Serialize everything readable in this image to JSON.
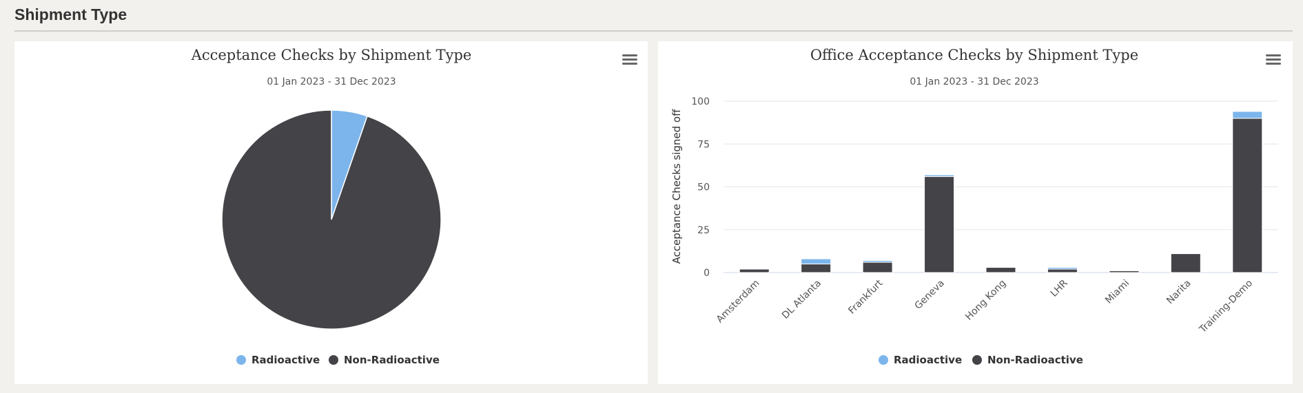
{
  "section": {
    "title": "Shipment Type"
  },
  "colors": {
    "radioactive": "#7cb5ec",
    "non_radioactive": "#434348"
  },
  "icons": {
    "menu": "hamburger-menu-icon"
  },
  "chart_data": [
    {
      "type": "pie",
      "title": "Acceptance Checks by Shipment Type",
      "subtitle": "01 Jan 2023 - 31 Dec 2023",
      "slices": [
        {
          "name": "Radioactive",
          "value": 5.3
        },
        {
          "name": "Non-Radioactive",
          "value": 94.7
        }
      ],
      "legend": [
        "Radioactive",
        "Non-Radioactive"
      ],
      "legend_position": "bottom-center"
    },
    {
      "type": "bar",
      "stacked": true,
      "title": "Office Acceptance Checks by Shipment Type",
      "subtitle": "01 Jan 2023 - 31 Dec 2023",
      "ylabel": "Acceptance Checks signed off",
      "ylim": [
        0,
        100
      ],
      "yticks": [
        "0",
        "25",
        "50",
        "75",
        "100"
      ],
      "categories": [
        "Amsterdam",
        "DL Atlanta",
        "Frankfurt",
        "Geneva",
        "Hong Kong",
        "LHR",
        "Miami",
        "Narita",
        "Training-Demo"
      ],
      "series": [
        {
          "name": "Radioactive",
          "values": [
            0,
            3,
            1,
            1,
            0,
            1,
            0,
            0,
            4
          ]
        },
        {
          "name": "Non-Radioactive",
          "values": [
            2,
            5,
            6,
            56,
            3,
            2,
            1,
            11,
            90
          ]
        }
      ],
      "legend": [
        "Radioactive",
        "Non-Radioactive"
      ],
      "legend_position": "bottom-center",
      "grid": true
    }
  ]
}
